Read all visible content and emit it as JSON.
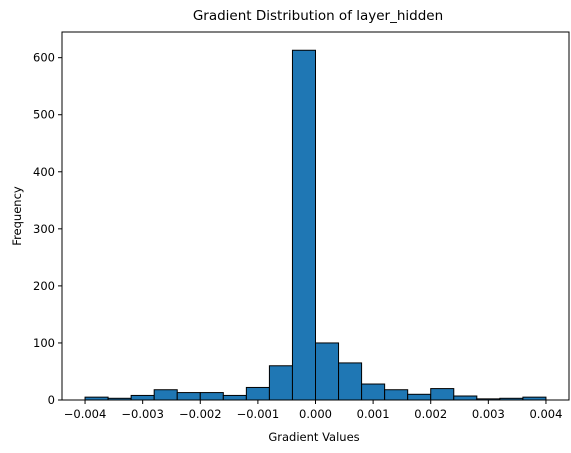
{
  "chart_data": {
    "type": "bar",
    "title": "Gradient Distribution of layer_hidden",
    "xlabel": "Gradient Values",
    "ylabel": "Frequency",
    "xlim": [
      -0.0044,
      0.0044
    ],
    "ylim": [
      0,
      645
    ],
    "x_ticks": [
      -0.004,
      -0.003,
      -0.002,
      -0.001,
      0.0,
      0.001,
      0.002,
      0.003,
      0.004
    ],
    "x_tick_labels": [
      "−0.004",
      "−0.003",
      "−0.002",
      "−0.001",
      "0.000",
      "0.001",
      "0.002",
      "0.003",
      "0.004"
    ],
    "y_ticks": [
      0,
      100,
      200,
      300,
      400,
      500,
      600
    ],
    "y_tick_labels": [
      "0",
      "100",
      "200",
      "300",
      "400",
      "500",
      "600"
    ],
    "bin_edges": [
      -0.004,
      -0.0036,
      -0.0032,
      -0.0028,
      -0.0024,
      -0.002,
      -0.0016,
      -0.0012,
      -0.0008,
      -0.0004,
      0.0,
      0.0004,
      0.0008,
      0.0012,
      0.0016,
      0.002,
      0.0024,
      0.0028,
      0.0032,
      0.0036,
      0.004
    ],
    "values": [
      5,
      3,
      8,
      18,
      13,
      13,
      8,
      22,
      60,
      613,
      100,
      65,
      28,
      18,
      10,
      20,
      7,
      2,
      3,
      5
    ],
    "bar_color": "#1f77b4",
    "edge_color": "#000000",
    "grid": false,
    "legend": "none"
  }
}
